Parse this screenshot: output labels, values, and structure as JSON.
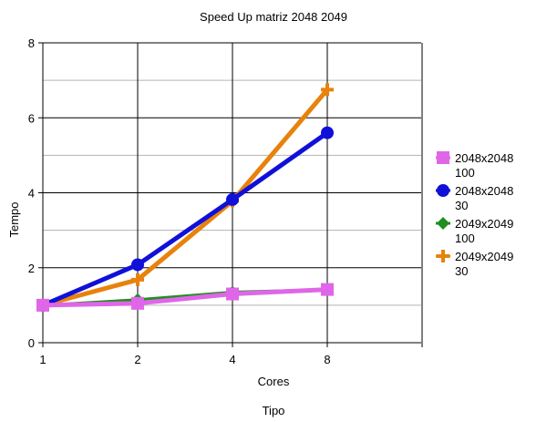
{
  "chart_data": {
    "type": "line",
    "title": "Speed Up matriz 2048 2049",
    "xlabel": "Cores",
    "xlabel2": "Tipo",
    "ylabel": "Tempo",
    "categories": [
      "1",
      "2",
      "4",
      "8"
    ],
    "ylim": [
      0,
      8
    ],
    "yticks": [
      "0",
      "2",
      "4",
      "6",
      "8"
    ],
    "grid": true,
    "legend_position": "right",
    "series": [
      {
        "name": "2048x2048 100",
        "name_lines": [
          "2048x2048",
          "100"
        ],
        "color": "#e066e8",
        "marker": "square",
        "values": [
          1.0,
          1.05,
          1.3,
          1.42
        ]
      },
      {
        "name": "2048x2048 30",
        "name_lines": [
          "2048x2048",
          "30"
        ],
        "color": "#1010d8",
        "marker": "circle",
        "values": [
          1.0,
          2.08,
          3.82,
          5.6
        ]
      },
      {
        "name": "2049x2049 100",
        "name_lines": [
          "2049x2049",
          "100"
        ],
        "color": "#1f8f1f",
        "marker": "diamond",
        "values": [
          1.0,
          1.15,
          1.35,
          1.42
        ]
      },
      {
        "name": "2049x2049 30",
        "name_lines": [
          "2049x2049",
          "30"
        ],
        "color": "#e8820c",
        "marker": "plus",
        "values": [
          1.0,
          1.68,
          3.78,
          6.75
        ]
      }
    ]
  }
}
